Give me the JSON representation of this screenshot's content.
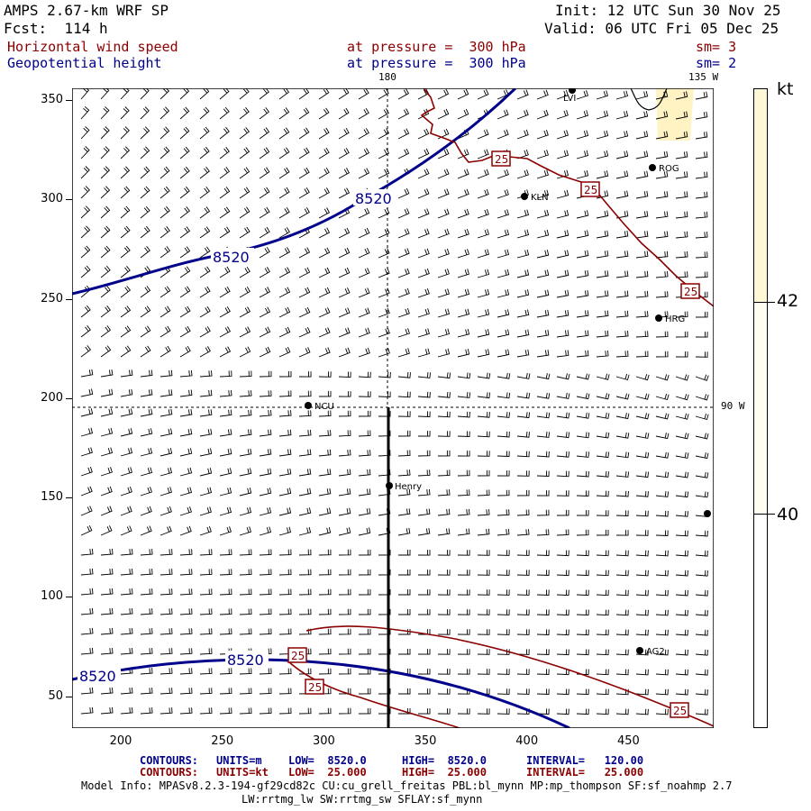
{
  "header": {
    "title": "AMPS 2.67-km WRF SP",
    "fcst": "Fcst:  114 h",
    "init": "Init: 12 UTC Sun 30 Nov 25",
    "valid": "Valid: 06 UTC Fri 05 Dec 25",
    "field1_name": "Horizontal wind speed",
    "field1_level": "at pressure =  300 hPa",
    "field1_sm": "sm= 3",
    "field2_name": "Geopotential height",
    "field2_level": "at pressure =  300 hPa",
    "field2_sm": "sm= 2"
  },
  "map": {
    "lon_labels": [
      "180",
      "135 W",
      "90 W"
    ],
    "contour_labels": {
      "height": "8520",
      "speed": "25"
    },
    "stations": [
      "LVI",
      "ROG",
      "KLN",
      "HRG",
      "NCU",
      "Henry",
      "AG2"
    ],
    "x_ticks": [
      "200",
      "250",
      "300",
      "350",
      "400",
      "450"
    ],
    "y_ticks": [
      "350",
      "300",
      "250",
      "200",
      "150",
      "100",
      "50"
    ],
    "x_range": [
      176,
      492
    ],
    "y_range": [
      34,
      356
    ]
  },
  "colorbar": {
    "unit": "kt",
    "labels": [
      "42",
      "40"
    ],
    "colors": {
      "high": "#fff8d6",
      "mid": "#fffdf2",
      "low": "#ffffff"
    }
  },
  "footer": {
    "contour1_label": "CONTOURS:",
    "contour1_units": "UNITS=m",
    "contour1_low": "LOW=  8520.0",
    "contour1_high": "HIGH=  8520.0",
    "contour1_interval": "INTERVAL=   120.00",
    "contour2_label": "CONTOURS:",
    "contour2_units": "UNITS=kt",
    "contour2_low": "LOW=  25.000",
    "contour2_high": "HIGH=  25.000",
    "contour2_interval": "INTERVAL=   25.000",
    "model_info": "Model Info: MPASv8.2.3-194-gf29cd82c CU:cu_grell_freitas PBL:bl_mynn MP:mp_thompson SF:sf_noahmp 2.7",
    "model_info2": "LW:rrtmg_lw SW:rrtmg_sw SFLAY:sf_mynn"
  },
  "colors": {
    "height_contour": "#00008b",
    "speed_contour": "#8b0000",
    "label_text_red": "#8b0000",
    "label_text_blue": "#00008b"
  }
}
